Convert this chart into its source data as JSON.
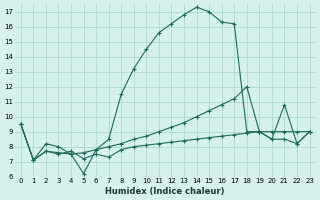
{
  "xlabel": "Humidex (Indice chaleur)",
  "bg_color": "#d6f0ec",
  "grid_color": "#aad8d0",
  "line_color": "#1a6b5e",
  "xlim": [
    -0.5,
    23.5
  ],
  "ylim": [
    6,
    17.5
  ],
  "yticks": [
    6,
    7,
    8,
    9,
    10,
    11,
    12,
    13,
    14,
    15,
    16,
    17
  ],
  "xticks": [
    0,
    1,
    2,
    3,
    4,
    5,
    6,
    7,
    8,
    9,
    10,
    11,
    12,
    13,
    14,
    15,
    16,
    17,
    18,
    19,
    20,
    21,
    22,
    23
  ],
  "lines": [
    {
      "x": [
        0,
        1,
        2,
        3,
        4,
        5,
        6,
        7,
        8,
        9,
        10,
        11,
        12,
        13,
        14,
        15,
        16,
        17,
        18,
        19,
        20,
        21,
        22,
        23
      ],
      "y": [
        9.5,
        7.1,
        8.2,
        8.0,
        7.5,
        6.2,
        7.8,
        8.5,
        11.5,
        13.2,
        14.5,
        15.6,
        16.2,
        16.8,
        17.3,
        17.0,
        16.3,
        16.2,
        9.0,
        9.0,
        9.0,
        9.0,
        9.0,
        9.0
      ]
    },
    {
      "x": [
        0,
        1,
        2,
        3,
        4,
        5,
        6,
        7,
        8,
        9,
        10,
        11,
        12,
        13,
        14,
        15,
        16,
        17,
        18,
        19,
        20,
        21,
        22,
        23
      ],
      "y": [
        9.5,
        7.1,
        7.7,
        7.6,
        7.5,
        7.6,
        7.8,
        8.0,
        8.2,
        8.5,
        8.7,
        9.0,
        9.3,
        9.6,
        10.0,
        10.4,
        10.8,
        11.2,
        12.0,
        9.0,
        8.5,
        10.8,
        8.2,
        9.0
      ]
    },
    {
      "x": [
        0,
        1,
        2,
        3,
        4,
        5,
        6,
        7,
        8,
        9,
        10,
        11,
        12,
        13,
        14,
        15,
        16,
        17,
        18,
        19,
        20,
        21,
        22,
        23
      ],
      "y": [
        9.5,
        7.1,
        7.7,
        7.5,
        7.7,
        7.2,
        7.5,
        7.3,
        7.8,
        8.0,
        8.1,
        8.2,
        8.3,
        8.4,
        8.5,
        8.6,
        8.7,
        8.8,
        8.9,
        9.0,
        8.5,
        8.5,
        8.2,
        9.0
      ]
    }
  ]
}
